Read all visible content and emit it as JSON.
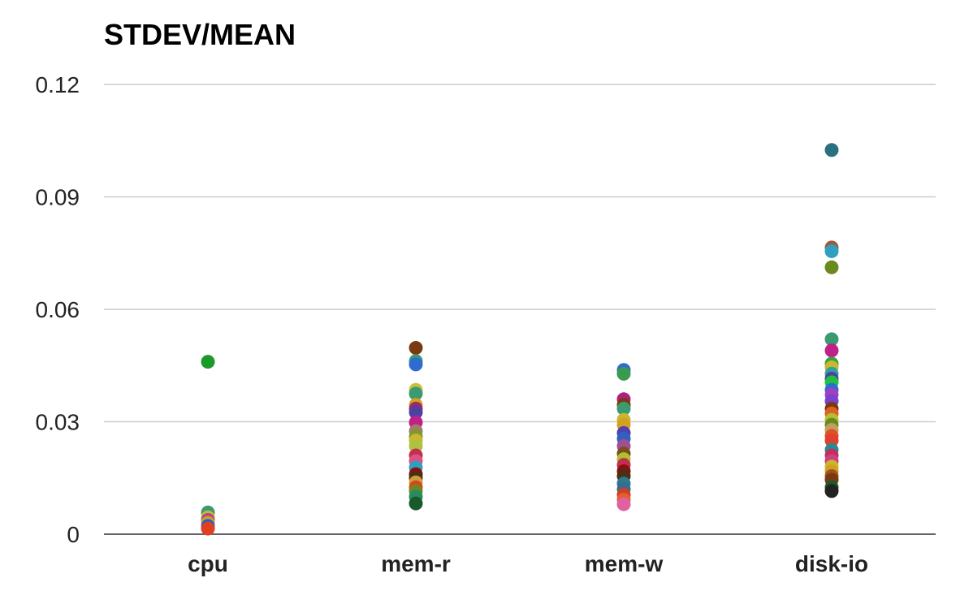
{
  "chart_data": {
    "type": "scatter",
    "title": "STDEV/MEAN",
    "xlabel": "",
    "ylabel": "",
    "categories": [
      "cpu",
      "mem-r",
      "mem-w",
      "disk-io"
    ],
    "ylim": [
      0,
      0.12
    ],
    "yticks": [
      0,
      0.03,
      0.06,
      0.09,
      0.12
    ],
    "ytick_labels": [
      "0",
      "0.03",
      "0.06",
      "0.09",
      "0.12"
    ],
    "grid": true,
    "legend": "none",
    "points": [
      {
        "x": "cpu",
        "y": 0.046,
        "color": "#1a9a2a"
      },
      {
        "x": "cpu",
        "y": 0.0058,
        "color": "#3a9a70"
      },
      {
        "x": "cpu",
        "y": 0.0045,
        "color": "#c8b830"
      },
      {
        "x": "cpu",
        "y": 0.0038,
        "color": "#b04890"
      },
      {
        "x": "cpu",
        "y": 0.003,
        "color": "#d4a020"
      },
      {
        "x": "cpu",
        "y": 0.0022,
        "color": "#2060d0"
      },
      {
        "x": "cpu",
        "y": 0.0015,
        "color": "#e04020"
      },
      {
        "x": "mem-r",
        "y": 0.0497,
        "color": "#7a3a10"
      },
      {
        "x": "mem-r",
        "y": 0.0462,
        "color": "#3a9a70"
      },
      {
        "x": "mem-r",
        "y": 0.0453,
        "color": "#2f6bd0"
      },
      {
        "x": "mem-r",
        "y": 0.0385,
        "color": "#c8c040"
      },
      {
        "x": "mem-r",
        "y": 0.0375,
        "color": "#3a9a70"
      },
      {
        "x": "mem-r",
        "y": 0.0345,
        "color": "#d4a020"
      },
      {
        "x": "mem-r",
        "y": 0.0335,
        "color": "#9a2a6a"
      },
      {
        "x": "mem-r",
        "y": 0.0325,
        "color": "#5040a0"
      },
      {
        "x": "mem-r",
        "y": 0.0298,
        "color": "#c0208a"
      },
      {
        "x": "mem-r",
        "y": 0.0275,
        "color": "#a08060"
      },
      {
        "x": "mem-r",
        "y": 0.026,
        "color": "#7a9a30"
      },
      {
        "x": "mem-r",
        "y": 0.025,
        "color": "#c8b830"
      },
      {
        "x": "mem-r",
        "y": 0.0235,
        "color": "#b0c040"
      },
      {
        "x": "mem-r",
        "y": 0.021,
        "color": "#c03050"
      },
      {
        "x": "mem-r",
        "y": 0.0195,
        "color": "#e05080"
      },
      {
        "x": "mem-r",
        "y": 0.0178,
        "color": "#30a0c0"
      },
      {
        "x": "mem-r",
        "y": 0.016,
        "color": "#8a1010"
      },
      {
        "x": "mem-r",
        "y": 0.015,
        "color": "#4a3010"
      },
      {
        "x": "mem-r",
        "y": 0.0138,
        "color": "#c8a040"
      },
      {
        "x": "mem-r",
        "y": 0.0125,
        "color": "#e04020"
      },
      {
        "x": "mem-r",
        "y": 0.0115,
        "color": "#6a8a20"
      },
      {
        "x": "mem-r",
        "y": 0.01,
        "color": "#2a8a60"
      },
      {
        "x": "mem-r",
        "y": 0.0082,
        "color": "#1a5a2a"
      },
      {
        "x": "mem-w",
        "y": 0.0438,
        "color": "#2f6bd0"
      },
      {
        "x": "mem-w",
        "y": 0.0428,
        "color": "#3a9a50"
      },
      {
        "x": "mem-w",
        "y": 0.036,
        "color": "#b02080"
      },
      {
        "x": "mem-w",
        "y": 0.0345,
        "color": "#7a3a10"
      },
      {
        "x": "mem-w",
        "y": 0.0335,
        "color": "#3a9a70"
      },
      {
        "x": "mem-w",
        "y": 0.0305,
        "color": "#c8b830"
      },
      {
        "x": "mem-w",
        "y": 0.0292,
        "color": "#d4a020"
      },
      {
        "x": "mem-w",
        "y": 0.027,
        "color": "#5040b0"
      },
      {
        "x": "mem-w",
        "y": 0.0255,
        "color": "#3060c0"
      },
      {
        "x": "mem-w",
        "y": 0.0235,
        "color": "#a05090"
      },
      {
        "x": "mem-w",
        "y": 0.0215,
        "color": "#7a5020"
      },
      {
        "x": "mem-w",
        "y": 0.02,
        "color": "#b0c030"
      },
      {
        "x": "mem-w",
        "y": 0.0185,
        "color": "#c03050"
      },
      {
        "x": "mem-w",
        "y": 0.0168,
        "color": "#8a1010"
      },
      {
        "x": "mem-w",
        "y": 0.0155,
        "color": "#4a3010"
      },
      {
        "x": "mem-w",
        "y": 0.0135,
        "color": "#2a7a90"
      },
      {
        "x": "mem-w",
        "y": 0.012,
        "color": "#3a6a90"
      },
      {
        "x": "mem-w",
        "y": 0.0105,
        "color": "#d04020"
      },
      {
        "x": "mem-w",
        "y": 0.0092,
        "color": "#e06030"
      },
      {
        "x": "mem-w",
        "y": 0.008,
        "color": "#e060a0"
      },
      {
        "x": "disk-io",
        "y": 0.1025,
        "color": "#2a7080"
      },
      {
        "x": "disk-io",
        "y": 0.0765,
        "color": "#a0583a"
      },
      {
        "x": "disk-io",
        "y": 0.0755,
        "color": "#30a0c0"
      },
      {
        "x": "disk-io",
        "y": 0.0712,
        "color": "#6a8a20"
      },
      {
        "x": "disk-io",
        "y": 0.052,
        "color": "#3a9a70"
      },
      {
        "x": "disk-io",
        "y": 0.049,
        "color": "#c0208a"
      },
      {
        "x": "disk-io",
        "y": 0.0455,
        "color": "#3aa040"
      },
      {
        "x": "disk-io",
        "y": 0.0445,
        "color": "#c8b830"
      },
      {
        "x": "disk-io",
        "y": 0.0428,
        "color": "#30a0a0"
      },
      {
        "x": "disk-io",
        "y": 0.0415,
        "color": "#5040a0"
      },
      {
        "x": "disk-io",
        "y": 0.0405,
        "color": "#20c040"
      },
      {
        "x": "disk-io",
        "y": 0.0385,
        "color": "#2f6bd0"
      },
      {
        "x": "disk-io",
        "y": 0.0372,
        "color": "#a040c0"
      },
      {
        "x": "disk-io",
        "y": 0.0355,
        "color": "#7a40d0"
      },
      {
        "x": "disk-io",
        "y": 0.0335,
        "color": "#7a3a10"
      },
      {
        "x": "disk-io",
        "y": 0.0322,
        "color": "#e06020"
      },
      {
        "x": "disk-io",
        "y": 0.0305,
        "color": "#b0c030"
      },
      {
        "x": "disk-io",
        "y": 0.0292,
        "color": "#6a8a20"
      },
      {
        "x": "disk-io",
        "y": 0.0278,
        "color": "#c0a060"
      },
      {
        "x": "disk-io",
        "y": 0.0262,
        "color": "#e05020"
      },
      {
        "x": "disk-io",
        "y": 0.025,
        "color": "#e04030"
      },
      {
        "x": "disk-io",
        "y": 0.0225,
        "color": "#2a8a90"
      },
      {
        "x": "disk-io",
        "y": 0.021,
        "color": "#c03060"
      },
      {
        "x": "disk-io",
        "y": 0.0195,
        "color": "#d04080"
      },
      {
        "x": "disk-io",
        "y": 0.018,
        "color": "#c8b830"
      },
      {
        "x": "disk-io",
        "y": 0.0168,
        "color": "#d4a020"
      },
      {
        "x": "disk-io",
        "y": 0.0155,
        "color": "#a05020"
      },
      {
        "x": "disk-io",
        "y": 0.0145,
        "color": "#7a3a10"
      },
      {
        "x": "disk-io",
        "y": 0.0125,
        "color": "#1a5a2a"
      },
      {
        "x": "disk-io",
        "y": 0.0115,
        "color": "#222222"
      }
    ]
  },
  "style": {
    "grid_color": "#cccccc",
    "axis_color": "#333333",
    "text_color": "#222222"
  }
}
